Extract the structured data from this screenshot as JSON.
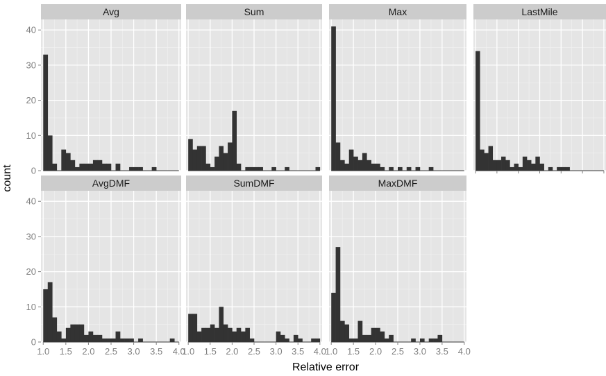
{
  "chart_data": {
    "type": "bar",
    "subtype": "faceted-histogram",
    "xlabel": "Relative error",
    "ylabel": "count",
    "xlim": [
      0.95,
      4.05
    ],
    "ylim": [
      0,
      43
    ],
    "x_ticks": [
      "1.0",
      "1.5",
      "2.0",
      "2.5",
      "3.0",
      "3.5",
      "4.0"
    ],
    "x_tick_values": [
      1.0,
      1.5,
      2.0,
      2.5,
      3.0,
      3.5,
      4.0
    ],
    "y_ticks": [
      "0",
      "10",
      "20",
      "30",
      "40"
    ],
    "y_tick_values": [
      0,
      10,
      20,
      30,
      40
    ],
    "grid": true,
    "bin_start": 1.0,
    "bin_width": 0.1,
    "colors": {
      "bar": "#333333",
      "panel": "#e5e5e5",
      "strip": "#cccccc"
    },
    "panels": [
      {
        "title": "Avg",
        "counts": [
          33,
          10,
          2,
          0,
          6,
          5,
          3,
          1,
          2,
          2,
          2,
          3,
          3,
          2,
          2,
          0,
          2,
          0,
          0,
          1,
          1,
          1,
          0,
          0,
          1,
          0,
          0,
          0,
          0,
          0
        ]
      },
      {
        "title": "Sum",
        "counts": [
          9,
          6,
          7,
          7,
          2,
          1,
          4,
          7,
          5,
          8,
          17,
          2,
          0,
          1,
          1,
          1,
          1,
          0,
          0,
          1,
          0,
          0,
          1,
          0,
          0,
          0,
          0,
          0,
          0,
          1
        ]
      },
      {
        "title": "Max",
        "counts": [
          41,
          8,
          3,
          2,
          6,
          4,
          3,
          5,
          3,
          2,
          2,
          1,
          0,
          1,
          0,
          1,
          0,
          1,
          0,
          1,
          0,
          0,
          1,
          0,
          0,
          0,
          0,
          0,
          0,
          0
        ]
      },
      {
        "title": "LastMile",
        "counts": [
          34,
          6,
          5,
          7,
          3,
          3,
          4,
          3,
          1,
          2,
          1,
          4,
          3,
          2,
          4,
          2,
          0,
          1,
          0,
          1,
          1,
          1,
          0,
          0,
          0,
          0,
          0,
          0,
          0,
          0
        ]
      },
      {
        "title": "AvgDMF",
        "counts": [
          15,
          17,
          7,
          3,
          1,
          4,
          5,
          5,
          5,
          2,
          3,
          2,
          2,
          1,
          1,
          1,
          3,
          1,
          1,
          1,
          0,
          1,
          0,
          0,
          0,
          0,
          0,
          0,
          1,
          0
        ]
      },
      {
        "title": "SumDMF",
        "counts": [
          8,
          8,
          3,
          4,
          4,
          5,
          4,
          10,
          5,
          4,
          3,
          4,
          3,
          4,
          1,
          0,
          0,
          0,
          0,
          0,
          3,
          2,
          1,
          0,
          2,
          1,
          0,
          0,
          1,
          1
        ]
      },
      {
        "title": "MaxDMF",
        "counts": [
          14,
          27,
          6,
          5,
          1,
          1,
          6,
          2,
          2,
          4,
          4,
          3,
          1,
          2,
          0,
          0,
          0,
          0,
          1,
          0,
          1,
          0,
          1,
          1,
          2,
          0,
          0,
          0,
          0,
          0
        ]
      }
    ]
  }
}
